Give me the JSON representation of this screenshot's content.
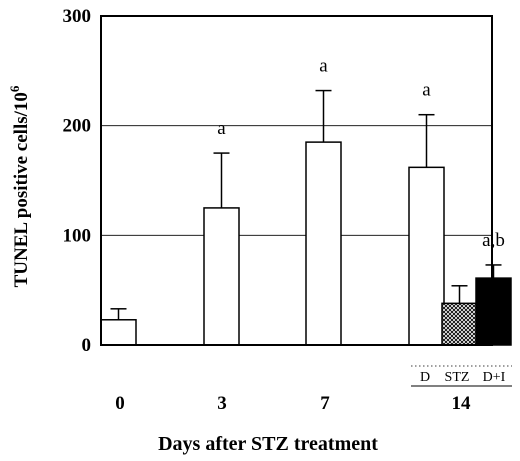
{
  "chart_data": {
    "type": "bar",
    "ylabel": "TUNEL positive cells/10",
    "ylabel_sup": "6",
    "xlabel": "Days after STZ treatment",
    "ylim": [
      0,
      300
    ],
    "yticks": [
      0,
      100,
      200,
      300
    ],
    "gridlines_y": [
      100,
      200
    ],
    "x_tick_labels": [
      "0",
      "3",
      "7",
      "14"
    ],
    "group_labels": [
      "D",
      "STZ",
      "D+I"
    ],
    "bars": [
      {
        "day": "0",
        "group": "",
        "value": 23,
        "error": 10,
        "fill": "white",
        "label": ""
      },
      {
        "day": "3",
        "group": "",
        "value": 125,
        "error": 50,
        "fill": "white",
        "label": "a"
      },
      {
        "day": "7",
        "group": "",
        "value": 185,
        "error": 47,
        "fill": "white",
        "label": "a"
      },
      {
        "day": "14",
        "group": "D",
        "value": 162,
        "error": 48,
        "fill": "white",
        "label": "a"
      },
      {
        "day": "14",
        "group": "STZ",
        "value": 38,
        "error": 16,
        "fill": "hatched",
        "label": ""
      },
      {
        "day": "14",
        "group": "D+I",
        "value": 61,
        "error": 12,
        "fill": "black",
        "label": "a,b"
      }
    ]
  }
}
